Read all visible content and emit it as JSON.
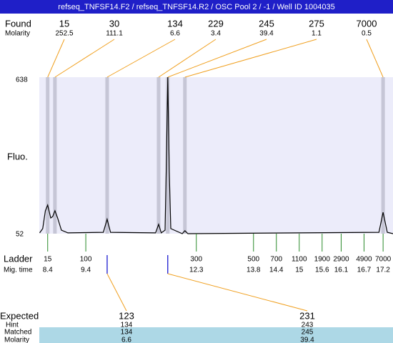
{
  "title": "refseq_TNFSF14.F2 / refseq_TNFSF14.R2 / OSC Pool 2 / -1 / Well ID 1004035",
  "found": {
    "label": "Found",
    "molarity_label": "Molarity",
    "peaks": [
      {
        "size": 15,
        "molarity": 252.5,
        "mig_time": 8.4
      },
      {
        "size": 30,
        "molarity": 111.1,
        "mig_time": 8.59
      },
      {
        "size": 134,
        "molarity": 6.6,
        "mig_time": 9.96
      },
      {
        "size": 229,
        "molarity": 3.4,
        "mig_time": 11.31
      },
      {
        "size": 245,
        "molarity": 39.4,
        "mig_time": 11.55
      },
      {
        "size": 275,
        "molarity": 1.1,
        "mig_time": 12.0
      },
      {
        "size": 7000,
        "molarity": 0.5,
        "mig_time": 17.2
      }
    ]
  },
  "fluo": {
    "label": "Fluo.",
    "ylim": [
      52,
      638
    ],
    "yticks": [
      52,
      638
    ]
  },
  "xlim": [
    8.18,
    17.46
  ],
  "trace": {
    "x": [
      8.19,
      8.27,
      8.34,
      8.4,
      8.48,
      8.53,
      8.59,
      8.66,
      8.76,
      8.93,
      9.86,
      9.96,
      10.05,
      11.23,
      11.31,
      11.38,
      11.48,
      11.51,
      11.55,
      11.59,
      11.63,
      11.93,
      12.0,
      12.08,
      17.09,
      17.2,
      17.31,
      17.46
    ],
    "values": [
      55,
      71,
      138,
      159,
      111,
      116,
      138,
      111,
      65,
      55,
      57,
      106,
      57,
      55,
      87,
      55,
      65,
      285,
      638,
      285,
      71,
      52,
      63,
      52,
      57,
      132,
      57,
      52
    ]
  },
  "ladder": {
    "label": "Ladder",
    "mig_label": "Mig. time",
    "sizes": [
      15,
      100,
      300,
      500,
      700,
      1100,
      1900,
      2900,
      4900,
      7000
    ],
    "mig_times": [
      8.4,
      9.4,
      12.3,
      13.8,
      14.4,
      15,
      15.6,
      16.1,
      16.7,
      17.2
    ]
  },
  "expected": {
    "label": "Expected",
    "hint_label": "Hint",
    "matched_label": "Matched",
    "molarity_label": "Molarity",
    "items": [
      {
        "expected": 123,
        "hint": 134,
        "matched": 134,
        "molarity": 6.6,
        "mig_time": 9.96
      },
      {
        "expected": 231,
        "hint": 243,
        "matched": 245,
        "molarity": 39.4,
        "mig_time": 11.55
      }
    ]
  }
}
